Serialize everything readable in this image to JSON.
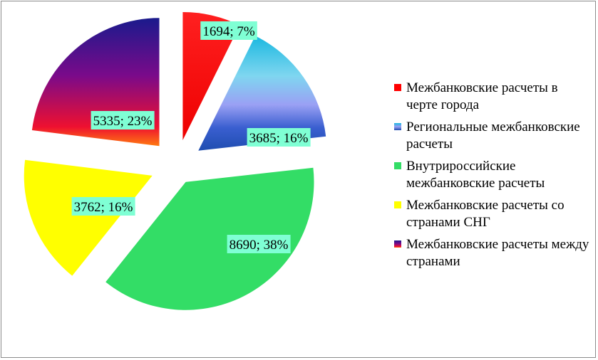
{
  "chart_data": {
    "type": "pie",
    "exploded": true,
    "slices": [
      {
        "name": "Межбанковские расчеты в черте города",
        "value": 1694,
        "percent": 7,
        "label": "1694; 7%",
        "color": "#ff0000"
      },
      {
        "name": "Региональные межбанковские расчеты",
        "value": 3685,
        "percent": 16,
        "label": "3685; 16%",
        "color": "#2f6fd6"
      },
      {
        "name": "Внутрироссийские межбанковские расчеты",
        "value": 8690,
        "percent": 38,
        "label": "8690; 38%",
        "color": "#33dd66"
      },
      {
        "name": "Межбанковские расчеты со странами СНГ",
        "value": 3762,
        "percent": 16,
        "label": "3762; 16%",
        "color": "#ffff00"
      },
      {
        "name": "Межбанковские расчеты между странами",
        "value": 5335,
        "percent": 23,
        "label": "5335; 23%",
        "color": "#7a0a8a"
      }
    ],
    "legend_position": "right",
    "label_background": "#7fffd4"
  }
}
